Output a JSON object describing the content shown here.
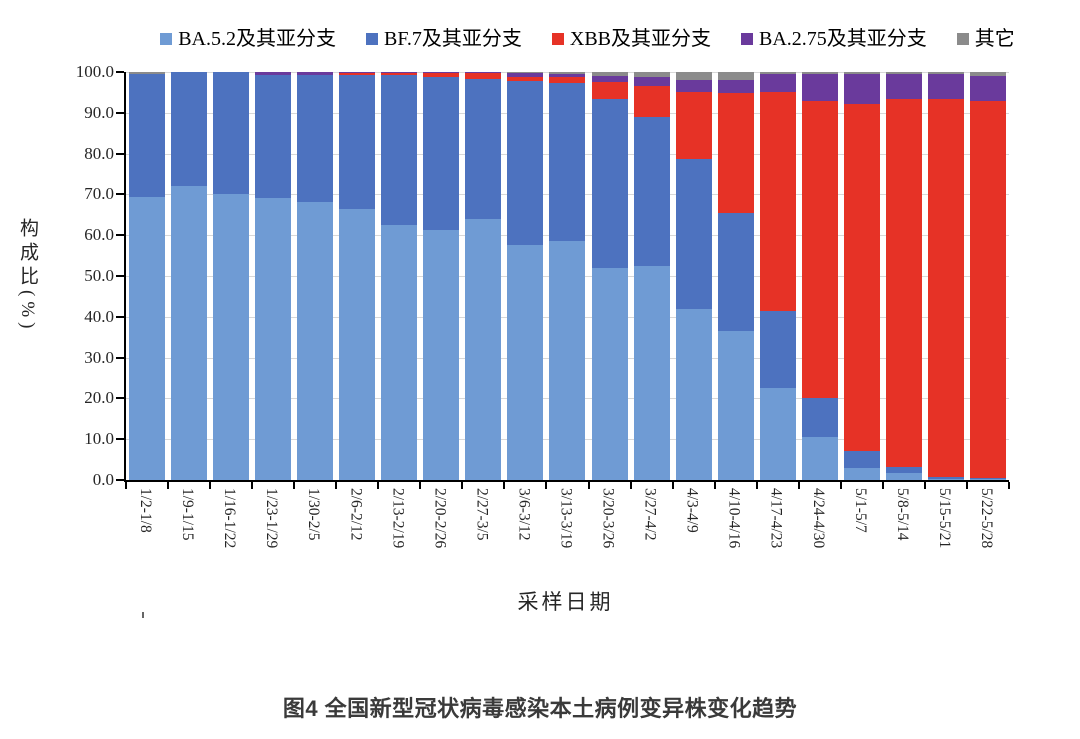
{
  "figure": {
    "caption": "图4 全国新型冠状病毒感染本土病例变异株变化趋势"
  },
  "chart_data": {
    "type": "bar",
    "stacked": true,
    "xlabel": "采样日期",
    "ylabel": "构成比(%)",
    "ylim": [
      0,
      100
    ],
    "grid": true,
    "legend_position": "top",
    "ytick_labels": [
      "0.0",
      "10.0",
      "20.0",
      "30.0",
      "40.0",
      "50.0",
      "60.0",
      "70.0",
      "80.0",
      "90.0",
      "100.0"
    ],
    "categories": [
      "1/2-1/8",
      "1/9-1/15",
      "1/16-1/22",
      "1/23-1/29",
      "1/30-2/5",
      "2/6-2/12",
      "2/13-2/19",
      "2/20-2/26",
      "2/27-3/5",
      "3/6-3/12",
      "3/13-3/19",
      "3/20-3/26",
      "3/27-4/2",
      "4/3-4/9",
      "4/10-4/16",
      "4/17-4/23",
      "4/24-4/30",
      "5/1-5/7",
      "5/8-5/14",
      "5/15-5/21",
      "5/22-5/28"
    ],
    "series": [
      {
        "name": "BA.5.2及其亚分支",
        "color": "#6f9bd4",
        "values": [
          69.3,
          72.0,
          70.2,
          69.0,
          68.1,
          66.5,
          62.4,
          61.2,
          64.0,
          57.5,
          58.5,
          52.0,
          52.5,
          42.0,
          36.5,
          22.5,
          10.5,
          3.0,
          1.7,
          0.3,
          0.2
        ]
      },
      {
        "name": "BF.7及其亚分支",
        "color": "#4d72bf",
        "values": [
          30.2,
          28.0,
          29.8,
          30.2,
          31.1,
          32.7,
          36.8,
          37.5,
          34.2,
          40.4,
          38.7,
          41.4,
          36.5,
          36.6,
          29.0,
          19.0,
          9.7,
          4.0,
          1.6,
          0.5,
          0.4
        ]
      },
      {
        "name": "XBB及其亚分支",
        "color": "#e63226",
        "values": [
          0.0,
          0.0,
          0.0,
          0.0,
          0.0,
          0.5,
          0.5,
          1.0,
          1.5,
          0.8,
          1.5,
          4.1,
          7.6,
          16.6,
          29.3,
          53.5,
          72.8,
          85.2,
          90.1,
          92.6,
          92.4
        ]
      },
      {
        "name": "BA.2.75及其亚分支",
        "color": "#6a3a9c",
        "values": [
          0.0,
          0.0,
          0.0,
          0.8,
          0.8,
          0.3,
          0.3,
          0.3,
          0.3,
          1.0,
          0.8,
          1.6,
          2.1,
          2.8,
          3.2,
          4.6,
          6.6,
          7.4,
          6.2,
          6.2,
          6.0
        ]
      },
      {
        "name": "其它",
        "color": "#8b8b8b",
        "values": [
          0.5,
          0.0,
          0.0,
          0.0,
          0.0,
          0.0,
          0.0,
          0.0,
          0.0,
          0.3,
          0.5,
          0.9,
          1.3,
          2.0,
          2.0,
          0.4,
          0.4,
          0.4,
          0.4,
          0.4,
          1.0
        ]
      }
    ]
  },
  "style": {
    "grid_color": "#d8d8d8",
    "axis_color": "#000000",
    "text_color": "#262626"
  }
}
